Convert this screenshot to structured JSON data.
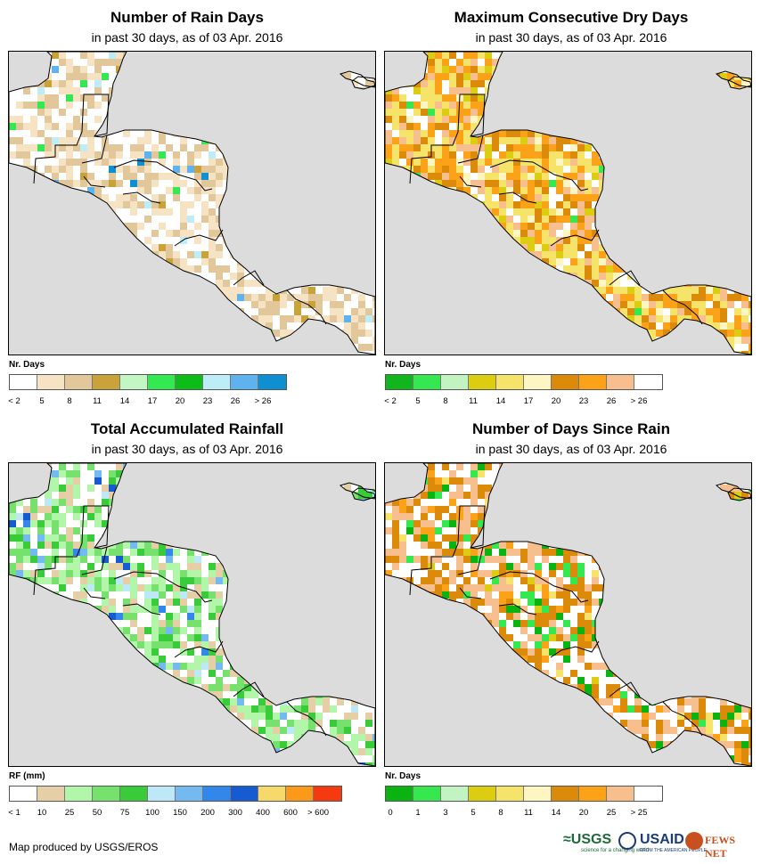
{
  "colors": {
    "ocean": "#dcdcdc",
    "land": "#ffffff",
    "border": "#000000"
  },
  "panels": [
    {
      "id": "rain_days",
      "title": "Number of Rain Days",
      "subtitle": "in past 30 days, as of 03 Apr. 2016",
      "legend_title": "Nr. Days",
      "legend_colors": [
        "#ffffff",
        "#f5e3c4",
        "#e2c79a",
        "#c9a23a",
        "#c2f7c4",
        "#33e850",
        "#0bbd16",
        "#bdeef7",
        "#5eb3ee",
        "#0d8fd1"
      ],
      "legend_labels": [
        "< 2",
        "5",
        "8",
        "11",
        "14",
        "17",
        "20",
        "23",
        "26",
        "> 26"
      ],
      "fill_weights": [
        0.42,
        0.24,
        0.26,
        0.03,
        0.0,
        0.02,
        0.0,
        0.01,
        0.01,
        0.01
      ]
    },
    {
      "id": "max_dry_days",
      "title": "Maximum Consecutive Dry Days",
      "subtitle": "in past 30 days, as of 03 Apr. 2016",
      "legend_title": "Nr. Days",
      "legend_colors": [
        "#11b51c",
        "#36e84f",
        "#c2f4c2",
        "#dccd12",
        "#f6e46a",
        "#fdf6c3",
        "#dc8a0a",
        "#fba219",
        "#f7bf8d",
        "#ffffff"
      ],
      "legend_labels": [
        "< 2",
        "5",
        "8",
        "11",
        "14",
        "17",
        "20",
        "23",
        "26",
        "> 26"
      ],
      "fill_weights": [
        0.0,
        0.02,
        0.0,
        0.06,
        0.25,
        0.06,
        0.14,
        0.22,
        0.14,
        0.11
      ]
    },
    {
      "id": "total_rainfall",
      "title": "Total Accumulated Rainfall",
      "subtitle": "in past 30 days, as of 03 Apr. 2016",
      "legend_title": "RF (mm)",
      "legend_colors": [
        "#ffffff",
        "#e6cfa7",
        "#b2f7a9",
        "#76e26d",
        "#3acb3a",
        "#bde8f7",
        "#74baf0",
        "#3387ea",
        "#165bd1",
        "#f6d96a",
        "#fa9a18",
        "#f53910"
      ],
      "legend_labels": [
        "< 1",
        "10",
        "25",
        "50",
        "75",
        "100",
        "150",
        "200",
        "300",
        "400",
        "600",
        "> 600"
      ],
      "fill_weights": [
        0.3,
        0.14,
        0.22,
        0.16,
        0.1,
        0.03,
        0.03,
        0.01,
        0.01,
        0.0,
        0.0,
        0.0
      ]
    },
    {
      "id": "days_since_rain",
      "title": "Number of Days Since Rain",
      "subtitle": "in past 30 days, as of 03 Apr. 2016",
      "legend_title": "Nr. Days",
      "legend_colors": [
        "#0ab312",
        "#36e84f",
        "#c2f4c2",
        "#dccd12",
        "#f6e46a",
        "#fdf6c3",
        "#dc8a0a",
        "#fba219",
        "#f7bf8d",
        "#ffffff"
      ],
      "legend_labels": [
        "0",
        "1",
        "3",
        "5",
        "8",
        "11",
        "14",
        "20",
        "25",
        "> 25"
      ],
      "fill_weights": [
        0.07,
        0.06,
        0.0,
        0.01,
        0.02,
        0.0,
        0.24,
        0.06,
        0.22,
        0.32
      ]
    }
  ],
  "footer": {
    "credit": "Map produced by USGS/EROS",
    "logos": [
      "usgs-logo",
      "usaid-logo",
      "fews-net-logo"
    ],
    "usgs": "≈USGS",
    "usgs_tagline": "science for a changing world",
    "usaid": "USAID",
    "usaid_tagline": "FROM THE AMERICAN PEOPLE",
    "fews": "FEWS NET"
  }
}
